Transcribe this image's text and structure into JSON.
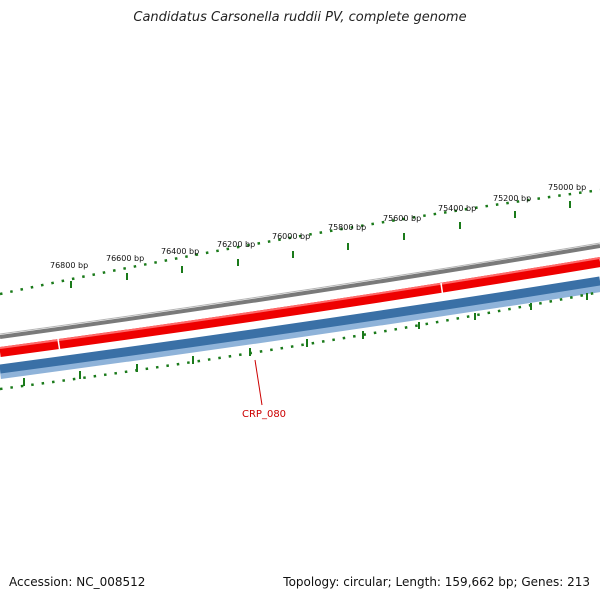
{
  "header": {
    "title": "Candidatus Carsonella ruddii PV, complete genome"
  },
  "footer": {
    "accession": "Accession: NC_008512",
    "summary": "Topology: circular; Length: 159,662 bp; Genes: 213"
  },
  "map": {
    "colors": {
      "backbone": "#7f7f7f",
      "forward_gene": "#ee0000",
      "reverse_gene": "#3a70a6",
      "reverse_gene_edge": "#8fb3d9",
      "ticks": "#1a7a1a",
      "label_line": "#cc0000"
    },
    "tick_labels": [
      {
        "bp": 75000,
        "text": "75000 bp"
      },
      {
        "bp": 75200,
        "text": "75200 bp"
      },
      {
        "bp": 75400,
        "text": "75400 bp"
      },
      {
        "bp": 75600,
        "text": "75600 bp"
      },
      {
        "bp": 75800,
        "text": "75800 bp"
      },
      {
        "bp": 76000,
        "text": "76000 bp"
      },
      {
        "bp": 76200,
        "text": "76200 bp"
      },
      {
        "bp": 76400,
        "text": "76400 bp"
      },
      {
        "bp": 76600,
        "text": "76600 bp"
      },
      {
        "bp": 76800,
        "text": "76800 bp"
      }
    ],
    "gene_labels": [
      {
        "name": "CRP_080",
        "text": "CRP_080"
      }
    ]
  }
}
